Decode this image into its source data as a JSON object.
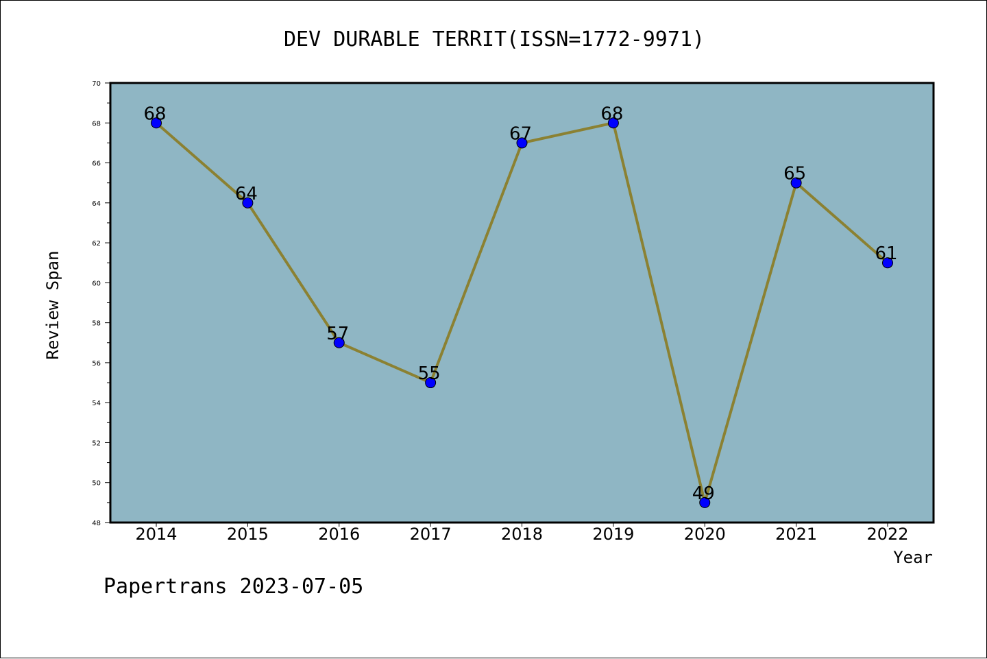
{
  "chart_data": {
    "type": "line",
    "title": "DEV DURABLE TERRIT(ISSN=1772-9971)",
    "xlabel": "Year",
    "ylabel": "Review Span",
    "categories": [
      "2014",
      "2015",
      "2016",
      "2017",
      "2018",
      "2019",
      "2020",
      "2021",
      "2022"
    ],
    "series": [
      {
        "values": [
          68,
          64,
          57,
          55,
          67,
          68,
          49,
          65,
          61
        ]
      }
    ],
    "ylim": [
      48,
      70
    ],
    "yticks": [
      48,
      50,
      52,
      54,
      56,
      58,
      60,
      62,
      64,
      66,
      68,
      70
    ],
    "grid": false,
    "colors": {
      "plot_background": "#8fb6c4",
      "line": "#8b8132",
      "marker": "#0000ff"
    }
  },
  "footer": {
    "text": "Papertrans 2023-07-05"
  }
}
